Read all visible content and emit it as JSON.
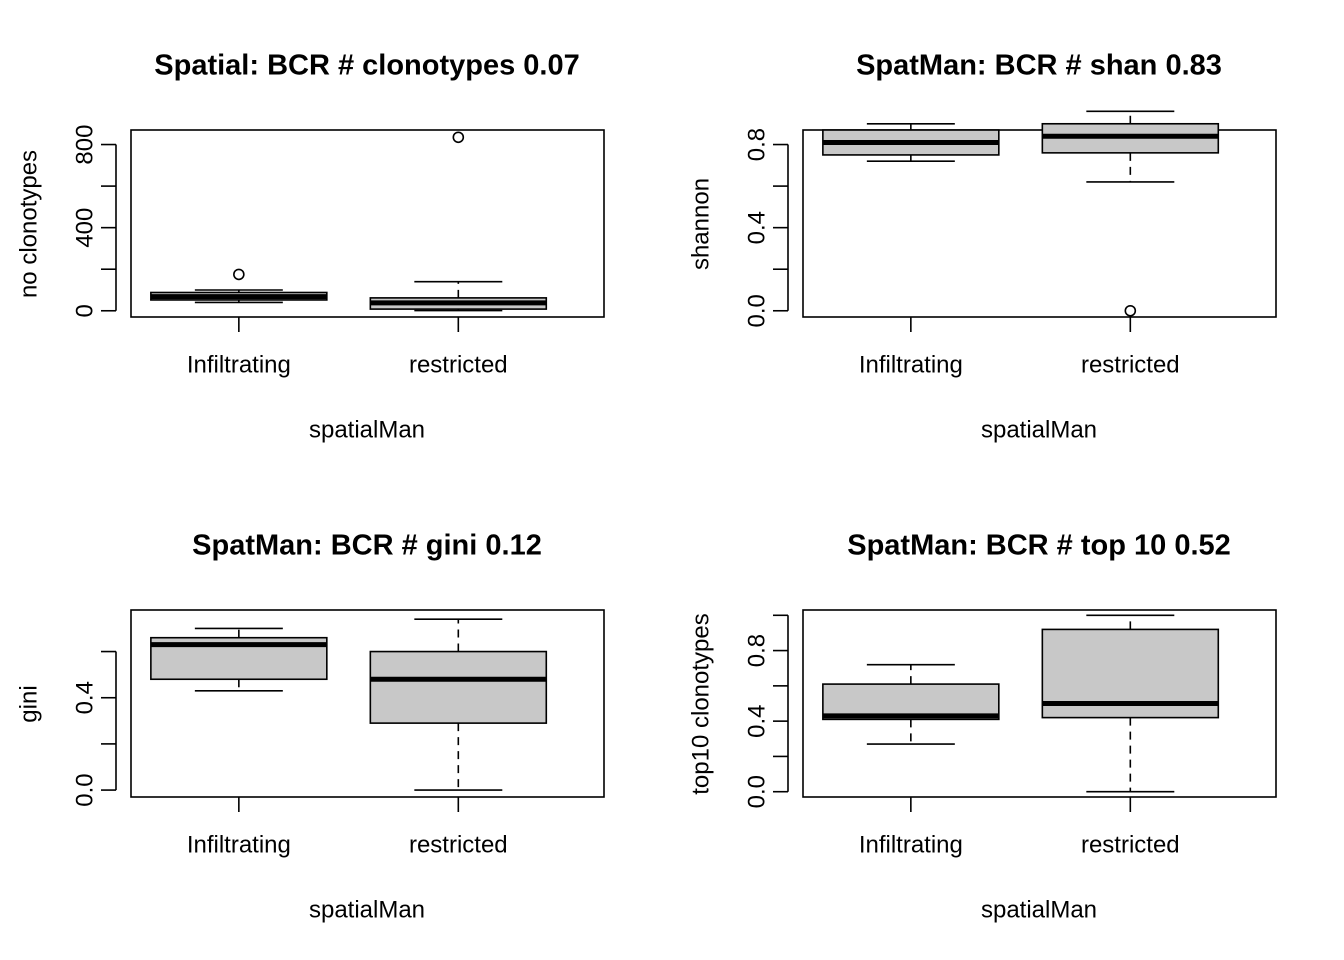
{
  "colors": {
    "box_fill": "#c8c8c8",
    "line": "#000000",
    "background": "#ffffff"
  },
  "chart_data": [
    {
      "type": "boxplot",
      "title": "Spatial: BCR # clonotypes 0.07",
      "xlabel": "spatialMan",
      "ylabel": "no clonotypes",
      "categories": [
        "Infiltrating",
        "restricted"
      ],
      "yticks": [
        0,
        400,
        800
      ],
      "ylim": [
        -30,
        870
      ],
      "boxes": [
        {
          "whisker_low": 40,
          "q1": 52,
          "median": 68,
          "q3": 88,
          "whisker_high": 100,
          "outliers": [
            175
          ]
        },
        {
          "whisker_low": 1,
          "q1": 8,
          "median": 38,
          "q3": 62,
          "whisker_high": 140,
          "outliers": [
            835
          ]
        }
      ]
    },
    {
      "type": "boxplot",
      "title": "SpatMan: BCR # shan 0.83",
      "xlabel": "spatialMan",
      "ylabel": "shannon",
      "categories": [
        "Infiltrating",
        "restricted"
      ],
      "yticks": [
        0.0,
        0.4,
        0.8
      ],
      "ylim": [
        -0.03,
        0.87
      ],
      "boxes": [
        {
          "whisker_low": 0.72,
          "q1": 0.75,
          "median": 0.81,
          "q3": 0.87,
          "whisker_high": 0.9,
          "outliers": []
        },
        {
          "whisker_low": 0.62,
          "q1": 0.76,
          "median": 0.84,
          "q3": 0.9,
          "whisker_high": 0.96,
          "outliers": [
            0.0
          ]
        }
      ]
    },
    {
      "type": "boxplot",
      "title": "SpatMan: BCR # gini 0.12",
      "xlabel": "spatialMan",
      "ylabel": "gini",
      "categories": [
        "Infiltrating",
        "restricted"
      ],
      "yticks": [
        0.0,
        0.4
      ],
      "ylim": [
        -0.03,
        0.78
      ],
      "boxes": [
        {
          "whisker_low": 0.43,
          "q1": 0.48,
          "median": 0.63,
          "q3": 0.66,
          "whisker_high": 0.7,
          "outliers": []
        },
        {
          "whisker_low": 0.0,
          "q1": 0.29,
          "median": 0.48,
          "q3": 0.6,
          "whisker_high": 0.74,
          "outliers": []
        }
      ]
    },
    {
      "type": "boxplot",
      "title": "SpatMan: BCR # top 10  0.52",
      "xlabel": "spatialMan",
      "ylabel": "top10 clonotypes",
      "categories": [
        "Infiltrating",
        "restricted"
      ],
      "yticks": [
        0.0,
        0.4,
        0.8
      ],
      "ylim": [
        -0.03,
        1.03
      ],
      "boxes": [
        {
          "whisker_low": 0.27,
          "q1": 0.41,
          "median": 0.43,
          "q3": 0.61,
          "whisker_high": 0.72,
          "outliers": []
        },
        {
          "whisker_low": 0.0,
          "q1": 0.42,
          "median": 0.5,
          "q3": 0.92,
          "whisker_high": 1.0,
          "outliers": []
        }
      ]
    }
  ]
}
